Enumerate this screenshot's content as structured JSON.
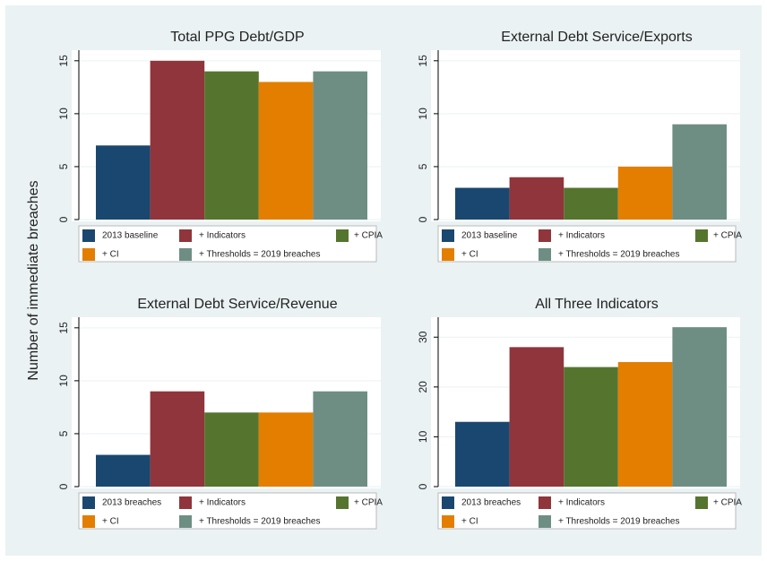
{
  "ylabel": "Number of immediate breaches",
  "chart_data": [
    {
      "type": "bar",
      "title": "Total PPG Debt/GDP",
      "ylim": [
        0,
        16
      ],
      "yticks": [
        0,
        5,
        10,
        15
      ],
      "grid": true,
      "series": [
        {
          "name": "2013 baseline",
          "color": "#1a476f",
          "values": [
            7
          ]
        },
        {
          "name": "+ Indicators",
          "color": "#90353b",
          "values": [
            15
          ]
        },
        {
          "name": "+ CPIA",
          "color": "#55752f",
          "values": [
            14
          ]
        },
        {
          "name": "+ CI",
          "color": "#e37e00",
          "values": [
            13
          ]
        },
        {
          "name": "+ Thresholds = 2019 breaches",
          "color": "#6e8e84",
          "values": [
            14
          ]
        }
      ]
    },
    {
      "type": "bar",
      "title": "External Debt Service/Exports",
      "ylim": [
        0,
        16
      ],
      "yticks": [
        0,
        5,
        10,
        15
      ],
      "grid": true,
      "series": [
        {
          "name": "2013 baseline",
          "color": "#1a476f",
          "values": [
            3
          ]
        },
        {
          "name": "+ Indicators",
          "color": "#90353b",
          "values": [
            4
          ]
        },
        {
          "name": "+ CPIA",
          "color": "#55752f",
          "values": [
            3
          ]
        },
        {
          "name": "+ CI",
          "color": "#e37e00",
          "values": [
            5
          ]
        },
        {
          "name": "+ Thresholds = 2019 breaches",
          "color": "#6e8e84",
          "values": [
            9
          ]
        }
      ]
    },
    {
      "type": "bar",
      "title": "External Debt Service/Revenue",
      "ylim": [
        0,
        16
      ],
      "yticks": [
        0,
        5,
        10,
        15
      ],
      "grid": true,
      "series": [
        {
          "name": "2013 breaches",
          "color": "#1a476f",
          "values": [
            3
          ]
        },
        {
          "name": "+ Indicators",
          "color": "#90353b",
          "values": [
            9
          ]
        },
        {
          "name": "+ CPIA",
          "color": "#55752f",
          "values": [
            7
          ]
        },
        {
          "name": "+ CI",
          "color": "#e37e00",
          "values": [
            7
          ]
        },
        {
          "name": "+ Thresholds = 2019 breaches",
          "color": "#6e8e84",
          "values": [
            9
          ]
        }
      ]
    },
    {
      "type": "bar",
      "title": "All Three Indicators",
      "ylim": [
        0,
        34
      ],
      "yticks": [
        0,
        10,
        20,
        30
      ],
      "grid": true,
      "series": [
        {
          "name": "2013 breaches",
          "color": "#1a476f",
          "values": [
            13
          ]
        },
        {
          "name": "+ Indicators",
          "color": "#90353b",
          "values": [
            28
          ]
        },
        {
          "name": "+ CPIA",
          "color": "#55752f",
          "values": [
            24
          ]
        },
        {
          "name": "+ CI",
          "color": "#e37e00",
          "values": [
            25
          ]
        },
        {
          "name": "+ Thresholds = 2019 breaches",
          "color": "#6e8e84",
          "values": [
            32
          ]
        }
      ]
    }
  ]
}
